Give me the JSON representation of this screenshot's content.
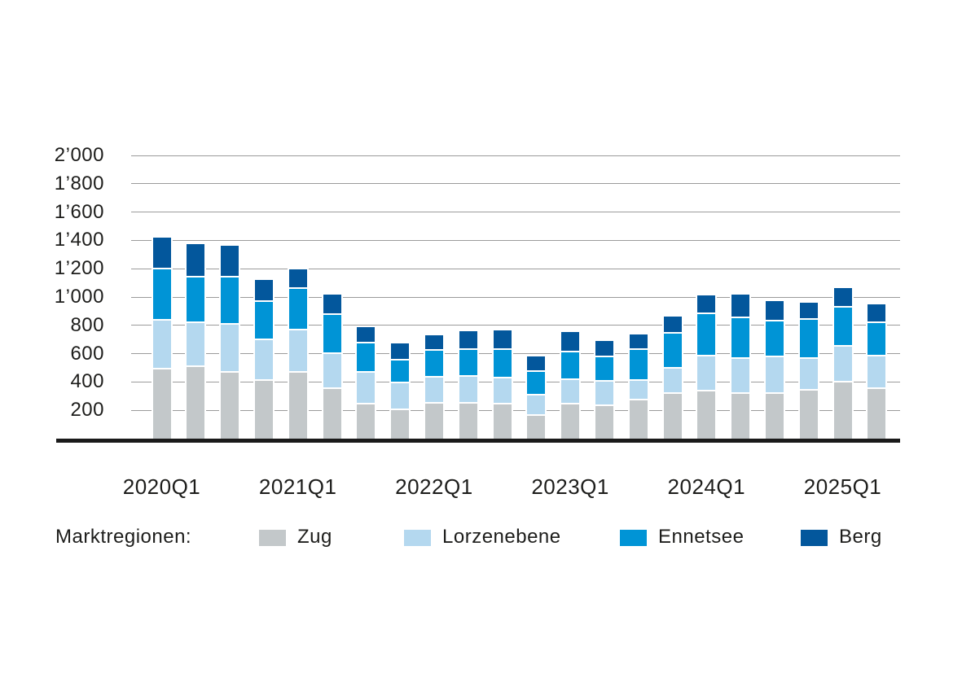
{
  "chart_data": {
    "type": "bar",
    "stacked": true,
    "title": "",
    "categories": [
      "2020Q1",
      "2020Q2",
      "2020Q3",
      "2020Q4",
      "2021Q1",
      "2021Q2",
      "2021Q3",
      "2021Q4",
      "2022Q1",
      "2022Q2",
      "2022Q3",
      "2022Q4",
      "2023Q1",
      "2023Q2",
      "2023Q3",
      "2023Q4",
      "2024Q1",
      "2024Q2",
      "2024Q3",
      "2024Q4",
      "2025Q1",
      "2025Q2"
    ],
    "series": [
      {
        "name": "Zug",
        "color": "#c3c8ca",
        "values": [
          500,
          520,
          475,
          420,
          475,
          360,
          250,
          210,
          260,
          260,
          250,
          170,
          250,
          240,
          280,
          330,
          345,
          330,
          330,
          350,
          410,
          360
        ]
      },
      {
        "name": "Lorzenebene",
        "color": "#b4d8ef",
        "values": [
          345,
          310,
          340,
          285,
          300,
          250,
          225,
          190,
          180,
          190,
          185,
          145,
          175,
          175,
          140,
          175,
          245,
          245,
          255,
          225,
          250,
          230
        ]
      },
      {
        "name": "Ennetsee",
        "color": "#0094d6",
        "values": [
          360,
          320,
          335,
          270,
          295,
          275,
          210,
          165,
          190,
          190,
          200,
          165,
          195,
          170,
          220,
          245,
          300,
          285,
          255,
          275,
          275,
          235
        ]
      },
      {
        "name": "Berg",
        "color": "#03579c",
        "values": [
          215,
          225,
          210,
          145,
          125,
          135,
          100,
          105,
          100,
          120,
          130,
          100,
          135,
          105,
          95,
          110,
          120,
          155,
          130,
          110,
          130,
          125
        ]
      }
    ],
    "ylim": [
      0,
      2000
    ],
    "yticks": [
      200,
      400,
      600,
      800,
      1000,
      1200,
      1400,
      1600,
      1800,
      2000
    ],
    "ytick_labels": [
      "200",
      "400",
      "600",
      "800",
      "1’000",
      "1’200",
      "1’400",
      "1’600",
      "1’800",
      "2’000"
    ],
    "x_axis_labels": [
      "2020Q1",
      "2021Q1",
      "2022Q1",
      "2023Q1",
      "2024Q1",
      "2025Q1"
    ],
    "legend_title": "Marktregionen:",
    "legend_position": "bottom",
    "grid": "horizontal",
    "colors": {
      "axis_line": "#1a1a1a",
      "gridline": "#9b9b9b",
      "text": "#1d1d1b",
      "background": "#ffffff"
    }
  }
}
